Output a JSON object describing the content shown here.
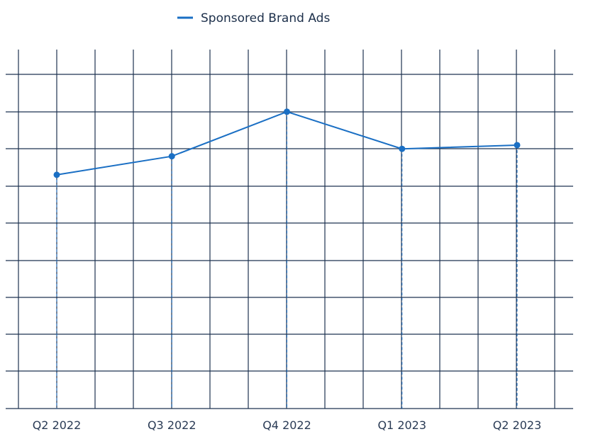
{
  "chart_data": {
    "type": "line",
    "categories": [
      "Q2 2022",
      "Q3 2022",
      "Q4 2022",
      "Q1 2023",
      "Q2 2023"
    ],
    "series": [
      {
        "name": "Sponsored Brand Ads",
        "values": [
          63,
          68,
          80,
          70,
          71
        ]
      }
    ],
    "ylim": [
      0,
      100
    ],
    "grid": true,
    "legend": "top-center",
    "colors": {
      "series": "#1a6fc4",
      "grid": "#1e3350"
    }
  }
}
